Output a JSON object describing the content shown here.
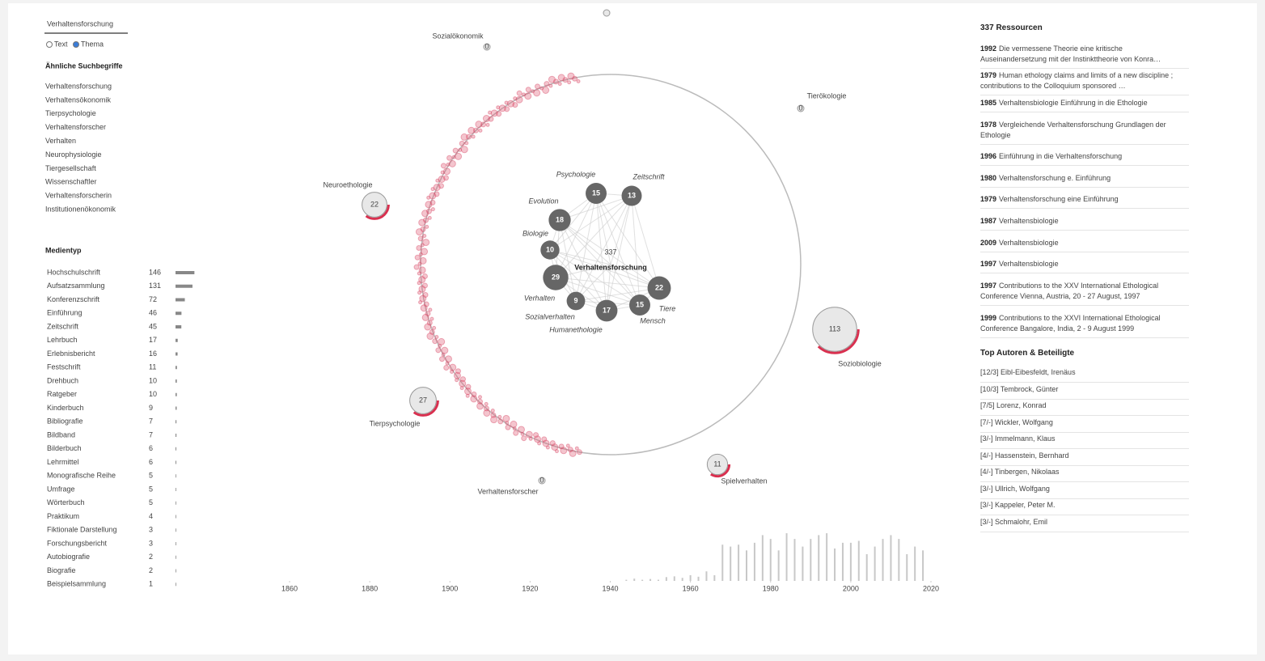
{
  "search": {
    "query": "Verhaltensforschung",
    "options": [
      "Text",
      "Thema"
    ]
  },
  "similar": {
    "title": "Ähnliche Suchbegriffe",
    "items": [
      "Verhaltensforschung",
      "Verhaltensökonomik",
      "Tierpsychologie",
      "Verhaltensforscher",
      "Verhalten",
      "Neurophysiologie",
      "Tiergesellschaft",
      "Wissenschaftler",
      "Verhaltensforscherin",
      "Institutionenökonomik"
    ]
  },
  "media": {
    "title": "Medientyp",
    "rows": [
      {
        "name": "Hochschulschrift",
        "count": 146
      },
      {
        "name": "Aufsatzsammlung",
        "count": 131
      },
      {
        "name": "Konferenzschrift",
        "count": 72
      },
      {
        "name": "Einführung",
        "count": 46
      },
      {
        "name": "Zeitschrift",
        "count": 45
      },
      {
        "name": "Lehrbuch",
        "count": 17
      },
      {
        "name": "Erlebnisbericht",
        "count": 16
      },
      {
        "name": "Festschrift",
        "count": 11
      },
      {
        "name": "Drehbuch",
        "count": 10
      },
      {
        "name": "Ratgeber",
        "count": 10
      },
      {
        "name": "Kinderbuch",
        "count": 9
      },
      {
        "name": "Bibliografie",
        "count": 7
      },
      {
        "name": "Bildband",
        "count": 7
      },
      {
        "name": "Bilderbuch",
        "count": 6
      },
      {
        "name": "Lehrmittel",
        "count": 6
      },
      {
        "name": "Monografische Reihe",
        "count": 5
      },
      {
        "name": "Umfrage",
        "count": 5
      },
      {
        "name": "Wörterbuch",
        "count": 5
      },
      {
        "name": "Praktikum",
        "count": 4
      },
      {
        "name": "Fiktionale Darstellung",
        "count": 3
      },
      {
        "name": "Forschungsbericht",
        "count": 3
      },
      {
        "name": "Autobiografie",
        "count": 2
      },
      {
        "name": "Biografie",
        "count": 2
      },
      {
        "name": "Beispielsammlung",
        "count": 1
      }
    ]
  },
  "graph": {
    "center": {
      "label": "Verhaltensforschung",
      "count": 337
    },
    "nodes": [
      {
        "label": "Psychologie",
        "count": 15
      },
      {
        "label": "Zeitschrift",
        "count": 13
      },
      {
        "label": "Evolution",
        "count": 18
      },
      {
        "label": "Biologie",
        "count": 10
      },
      {
        "label": "Sozialverhalten",
        "count": 29
      },
      {
        "label": "Verhalten",
        "count": 9
      },
      {
        "label": "Humanethologie",
        "count": 17
      },
      {
        "label": "Mensch",
        "count": 15
      },
      {
        "label": "Tiere",
        "count": 22
      }
    ],
    "topics": [
      {
        "label": "Sozialökonomik",
        "count": 0
      },
      {
        "label": "Tierökologie",
        "count": 0
      },
      {
        "label": "Neuroethologie",
        "count": 22
      },
      {
        "label": "Soziobiologie",
        "count": 113
      },
      {
        "label": "Tierpsychologie",
        "count": 27
      },
      {
        "label": "Spielverhalten",
        "count": 11
      },
      {
        "label": "Verhaltensforscher",
        "count": 0
      }
    ]
  },
  "timeline": {
    "xlim": [
      1860,
      2020
    ],
    "xticks": [
      1860,
      1880,
      1900,
      1920,
      1940,
      1960,
      1980,
      2000,
      2020
    ],
    "ylim": [
      0,
      14
    ],
    "years": [
      1944,
      1946,
      1948,
      1950,
      1952,
      1954,
      1956,
      1958,
      1960,
      1962,
      1964,
      1966,
      1968,
      1970,
      1972,
      1974,
      1976,
      1978,
      1980,
      1982,
      1984,
      1986,
      1988,
      1990,
      1992,
      1994,
      1996,
      1998,
      2000,
      2002,
      2004,
      2006,
      2008,
      2010,
      2012,
      2014,
      2016,
      2018
    ],
    "values": [
      0.3,
      0.6,
      0.3,
      0.5,
      0.3,
      1,
      1.2,
      0.8,
      1.5,
      1.1,
      2.5,
      1.5,
      9.5,
      9,
      9.5,
      8,
      10,
      12,
      11,
      8,
      12.5,
      11,
      9,
      11,
      12,
      12.5,
      8.5,
      10,
      10,
      10.5,
      7,
      9,
      11,
      12,
      11,
      7,
      9,
      8
    ]
  },
  "results": {
    "title": "337 Ressourcen",
    "items": [
      {
        "year": 1992,
        "text": "Die vermessene Theorie eine kritische Auseinandersetzung mit der Instinkttheorie von Konra…"
      },
      {
        "year": 1979,
        "text": "Human ethology claims and limits of a new discipline ; contributions to the Colloquium sponsored …"
      },
      {
        "year": 1985,
        "text": "Verhaltensbiologie Einführung in die Ethologie"
      },
      {
        "year": 1978,
        "text": "Vergleichende Verhaltensforschung Grundlagen der Ethologie"
      },
      {
        "year": 1996,
        "text": "Einführung in die Verhaltensforschung"
      },
      {
        "year": 1980,
        "text": "Verhaltensforschung e. Einführung"
      },
      {
        "year": 1979,
        "text": "Verhaltensforschung eine Einführung"
      },
      {
        "year": 1987,
        "text": "Verhaltensbiologie"
      },
      {
        "year": 2009,
        "text": "Verhaltensbiologie"
      },
      {
        "year": 1997,
        "text": "Verhaltensbiologie"
      },
      {
        "year": 1997,
        "text": "Contributions to the XXV International Ethological Conference Vienna, Austria, 20 - 27 August, 1997"
      },
      {
        "year": 1999,
        "text": "Contributions to the XXVI International Ethological Conference Bangalore, India, 2 - 9 August 1999"
      }
    ]
  },
  "authors": {
    "title": "Top Autoren & Beteiligte",
    "items": [
      "[12/3] Eibl-Eibesfeldt, Irenäus",
      "[10/3] Tembrock, Günter",
      "[7/5] Lorenz, Konrad",
      "[7/-] Wickler, Wolfgang",
      "[3/-] Immelmann, Klaus",
      "[4/-] Hassenstein, Bernhard",
      "[4/-] Tinbergen, Nikolaas",
      "[3/-] Ullrich, Wolfgang",
      "[3/-] Kappeler, Peter M.",
      "[3/-] Schmalohr, Emil"
    ]
  }
}
